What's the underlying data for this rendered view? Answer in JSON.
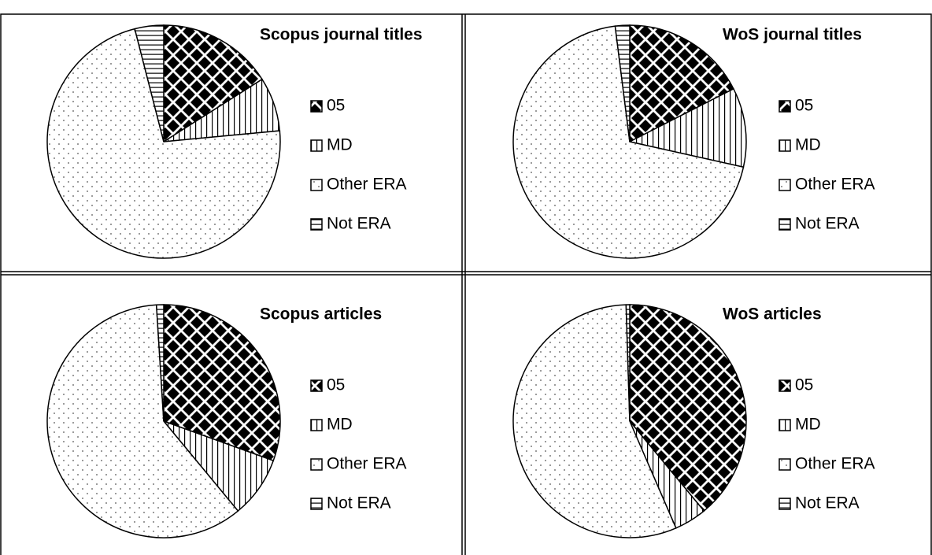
{
  "chart_data": [
    {
      "type": "pie",
      "title": "Scopus journal titles",
      "categories": [
        "05",
        "MD",
        "Other ERA",
        "Not ERA"
      ],
      "values": [
        16,
        7.5,
        72.5,
        4
      ]
    },
    {
      "type": "pie",
      "title": "WoS journal titles",
      "categories": [
        "05",
        "MD",
        "Other ERA",
        "Not ERA"
      ],
      "values": [
        17.5,
        11,
        69.5,
        2
      ]
    },
    {
      "type": "pie",
      "title": "Scopus articles",
      "categories": [
        "05",
        "MD",
        "Other ERA",
        "Not ERA"
      ],
      "values": [
        30.5,
        8.5,
        60,
        1
      ]
    },
    {
      "type": "pie",
      "title": "WoS articles",
      "categories": [
        "05",
        "MD",
        "Other ERA",
        "Not ERA"
      ],
      "values": [
        39,
        4.5,
        56,
        0.5
      ]
    }
  ]
}
